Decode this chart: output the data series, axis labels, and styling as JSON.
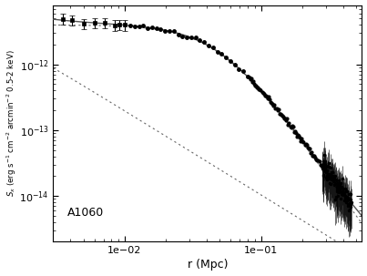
{
  "xlabel": "r (Mpc)",
  "ylabel": "$S_x$ (erg s$^{-1}$ cm$^{-2}$ arcmin$^{-2}$ 0.5-2 keV)",
  "annotation": "A1060",
  "xmin": 0.003,
  "xmax": 0.55,
  "ymin": 2e-15,
  "ymax": 8e-12,
  "bg_color": "#ffffff",
  "line_color": "#555555",
  "beta1": {
    "S0": 5e-12,
    "rc": 0.0008,
    "beta": 0.38
  },
  "beta2": {
    "S0": 4e-12,
    "rc": 0.05,
    "beta": 0.65
  }
}
